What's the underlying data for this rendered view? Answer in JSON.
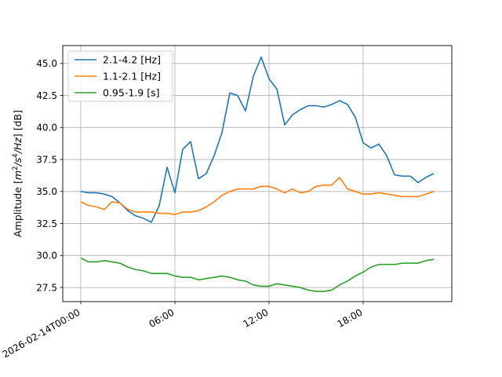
{
  "chart_data": {
    "type": "line",
    "title": "",
    "xlabel": "",
    "ylabel": "Amplitude [m²/s⁴/Hz] [dB]",
    "ylabel_parts": {
      "prefix": "Amplitude [",
      "m": "m",
      "m_exp": "2",
      "s": "/s",
      "s_exp": "4",
      "hz": "/Hz",
      "suffix": "] [dB]"
    },
    "x_unit": "hours since 2026-02-14T00:00",
    "xlim": [
      -1.15,
      23.65
    ],
    "ylim": [
      26.4,
      46.4
    ],
    "grid": true,
    "legend_position": "top-left",
    "x_ticks": [
      {
        "value": 0,
        "label": "2026-02-14T00:00"
      },
      {
        "value": 6,
        "label": "06:00"
      },
      {
        "value": 12,
        "label": "12:00"
      },
      {
        "value": 18,
        "label": "18:00"
      }
    ],
    "y_ticks": [
      {
        "value": 27.5,
        "label": "27.5"
      },
      {
        "value": 30.0,
        "label": "30.0"
      },
      {
        "value": 32.5,
        "label": "32.5"
      },
      {
        "value": 35.0,
        "label": "35.0"
      },
      {
        "value": 37.5,
        "label": "37.5"
      },
      {
        "value": 40.0,
        "label": "40.0"
      },
      {
        "value": 42.5,
        "label": "42.5"
      },
      {
        "value": 45.0,
        "label": "45.0"
      }
    ],
    "x": [
      0,
      0.5,
      1,
      1.5,
      2,
      2.5,
      3,
      3.5,
      4,
      4.5,
      5,
      5.5,
      6,
      6.5,
      7,
      7.5,
      8,
      8.5,
      9,
      9.5,
      10,
      10.5,
      11,
      11.5,
      12,
      12.5,
      13,
      13.5,
      14,
      14.5,
      15,
      15.5,
      16,
      16.5,
      17,
      17.5,
      18,
      18.5,
      19,
      19.5,
      20,
      20.5,
      21,
      21.5,
      22,
      22.5
    ],
    "series": [
      {
        "name": "2.1-4.2 [Hz]",
        "color": "#1f77b4",
        "values": [
          35.0,
          34.9,
          34.9,
          34.8,
          34.6,
          34.1,
          33.5,
          33.1,
          32.9,
          32.6,
          33.9,
          36.9,
          34.9,
          38.3,
          38.9,
          36.0,
          36.4,
          37.8,
          39.6,
          42.7,
          42.5,
          41.3,
          44.0,
          45.5,
          43.8,
          43.0,
          40.2,
          41.0,
          41.4,
          41.7,
          41.7,
          41.6,
          41.8,
          42.1,
          41.8,
          40.8,
          38.8,
          38.4,
          38.7,
          37.8,
          36.3,
          36.2,
          36.2,
          35.7,
          36.1,
          36.4
        ]
      },
      {
        "name": "1.1-2.1 [Hz]",
        "color": "#ff7f0e",
        "values": [
          34.2,
          33.9,
          33.8,
          33.6,
          34.2,
          34.1,
          33.6,
          33.4,
          33.4,
          33.4,
          33.3,
          33.3,
          33.2,
          33.4,
          33.4,
          33.5,
          33.8,
          34.2,
          34.7,
          35.0,
          35.2,
          35.2,
          35.2,
          35.4,
          35.4,
          35.2,
          34.9,
          35.2,
          34.9,
          35.0,
          35.4,
          35.5,
          35.5,
          36.1,
          35.2,
          35.0,
          34.8,
          34.8,
          34.9,
          34.8,
          34.7,
          34.6,
          34.6,
          34.6,
          34.8,
          35.0
        ]
      },
      {
        "name": "0.95-1.9 [s]",
        "color": "#2ca02c",
        "values": [
          29.8,
          29.5,
          29.5,
          29.6,
          29.5,
          29.4,
          29.1,
          28.9,
          28.8,
          28.6,
          28.6,
          28.6,
          28.4,
          28.3,
          28.3,
          28.1,
          28.2,
          28.3,
          28.4,
          28.3,
          28.1,
          28.0,
          27.7,
          27.6,
          27.6,
          27.8,
          27.7,
          27.6,
          27.5,
          27.3,
          27.2,
          27.2,
          27.3,
          27.7,
          28.0,
          28.4,
          28.7,
          29.1,
          29.3,
          29.3,
          29.3,
          29.4,
          29.4,
          29.4,
          29.6,
          29.7
        ]
      }
    ]
  }
}
